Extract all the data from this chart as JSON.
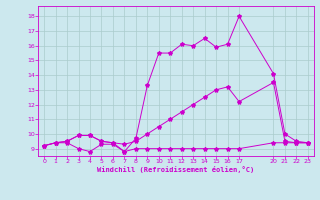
{
  "xlabel": "Windchill (Refroidissement éolien,°C)",
  "bg_color": "#cce8ee",
  "grid_color": "#aacccc",
  "line_color": "#cc00cc",
  "xlim": [
    -0.5,
    23.5
  ],
  "ylim": [
    8.5,
    18.7
  ],
  "yticks": [
    9,
    10,
    11,
    12,
    13,
    14,
    15,
    16,
    17,
    18
  ],
  "xticks": [
    0,
    1,
    2,
    3,
    4,
    5,
    6,
    7,
    8,
    9,
    10,
    11,
    12,
    13,
    14,
    15,
    16,
    17,
    20,
    21,
    22,
    23
  ],
  "series_flat_x": [
    0,
    1,
    2,
    3,
    4,
    5,
    6,
    7,
    8,
    9,
    10,
    11,
    12,
    13,
    14,
    15,
    16,
    17,
    20,
    21,
    22,
    23
  ],
  "series_flat_y": [
    9.2,
    9.4,
    9.4,
    9.0,
    8.8,
    9.3,
    9.3,
    8.8,
    9.0,
    9.0,
    9.0,
    9.0,
    9.0,
    9.0,
    9.0,
    9.0,
    9.0,
    9.0,
    9.4,
    9.4,
    9.4,
    9.4
  ],
  "series_mid_x": [
    0,
    1,
    2,
    3,
    4,
    5,
    6,
    7,
    8,
    9,
    10,
    11,
    12,
    13,
    14,
    15,
    16,
    17,
    20,
    21,
    22,
    23
  ],
  "series_mid_y": [
    9.2,
    9.4,
    9.5,
    9.9,
    9.9,
    9.5,
    9.4,
    9.3,
    9.5,
    10.0,
    10.5,
    11.0,
    11.5,
    12.0,
    12.5,
    13.0,
    13.2,
    12.2,
    13.5,
    9.5,
    9.4,
    9.4
  ],
  "series_top_x": [
    0,
    1,
    2,
    3,
    4,
    5,
    6,
    7,
    8,
    9,
    10,
    11,
    12,
    13,
    14,
    15,
    16,
    17,
    20,
    21,
    22,
    23
  ],
  "series_top_y": [
    9.2,
    9.4,
    9.5,
    9.9,
    9.9,
    9.5,
    9.4,
    8.8,
    9.7,
    13.3,
    15.5,
    15.5,
    16.1,
    16.0,
    16.5,
    15.9,
    16.1,
    18.0,
    14.1,
    10.0,
    9.5,
    9.4
  ]
}
